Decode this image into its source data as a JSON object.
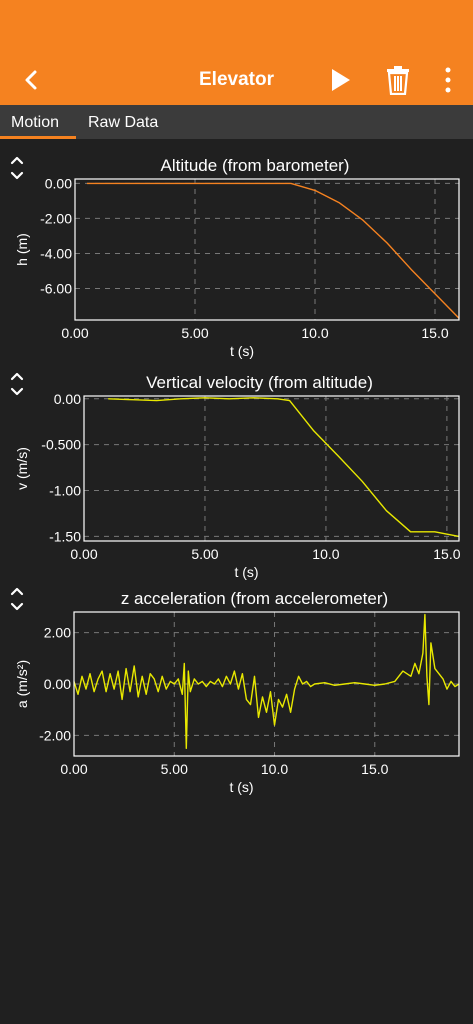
{
  "header": {
    "title": "Elevator",
    "icons": [
      "back-chevron-icon",
      "play-icon",
      "trash-icon",
      "more-vertical-icon"
    ],
    "color": "#f58220"
  },
  "tabs": [
    {
      "label": "Motion",
      "active": true
    },
    {
      "label": "Raw Data",
      "active": false
    }
  ],
  "chart_data": [
    {
      "type": "line",
      "title": "Altitude (from barometer)",
      "xlabel": "t (s)",
      "ylabel": "h (m)",
      "xlim": [
        0,
        16
      ],
      "ylim": [
        -7.8,
        0.25
      ],
      "xticks": [
        0,
        5,
        10,
        15
      ],
      "xtick_labels": [
        "0.00",
        "5.00",
        "10.0",
        "15.0"
      ],
      "yticks": [
        0,
        -2,
        -4,
        -6
      ],
      "ytick_labels": [
        "0.00",
        "-2.00",
        "-4.00",
        "-6.00"
      ],
      "grid": true,
      "color": "#f58220",
      "series": [
        {
          "x": [
            0.5,
            2,
            4,
            6,
            8,
            9,
            10,
            11,
            12,
            13,
            14,
            15,
            16
          ],
          "y": [
            0,
            0,
            0,
            0,
            0,
            0,
            -0.4,
            -1.1,
            -2.1,
            -3.4,
            -4.9,
            -6.3,
            -7.7
          ]
        }
      ]
    },
    {
      "type": "line",
      "title": "Vertical velocity (from altitude)",
      "xlabel": "t (s)",
      "ylabel": "v (m/s)",
      "xlim": [
        0,
        15.5
      ],
      "ylim": [
        -1.55,
        0.03
      ],
      "xticks": [
        0,
        5,
        10,
        15
      ],
      "xtick_labels": [
        "0.00",
        "5.00",
        "10.0",
        "15.0"
      ],
      "yticks": [
        0,
        -0.5,
        -1,
        -1.5
      ],
      "ytick_labels": [
        "0.00",
        "-0.500",
        "-1.00",
        "-1.50"
      ],
      "grid": true,
      "color": "#e8e800",
      "series": [
        {
          "x": [
            1,
            2,
            3,
            4,
            5,
            6,
            7,
            8,
            8.5,
            9.5,
            10.5,
            11.5,
            12.5,
            13.5,
            14.5,
            15.5
          ],
          "y": [
            0,
            -0.01,
            -0.02,
            0,
            0.01,
            0,
            0.01,
            0,
            -0.02,
            -0.35,
            -0.62,
            -0.9,
            -1.22,
            -1.45,
            -1.45,
            -1.5
          ]
        }
      ]
    },
    {
      "type": "line",
      "title": "z acceleration (from accelerometer)",
      "xlabel": "t (s)",
      "ylabel": "a (m/s²)",
      "xlim": [
        0,
        19.2
      ],
      "ylim": [
        -2.8,
        2.8
      ],
      "xticks": [
        0,
        5,
        10,
        15
      ],
      "xtick_labels": [
        "0.00",
        "5.00",
        "10.0",
        "15.0"
      ],
      "yticks": [
        2,
        0,
        -2
      ],
      "ytick_labels": [
        "2.00",
        "0.00",
        "-2.00"
      ],
      "grid": true,
      "color": "#e8e800",
      "series": [
        {
          "x": [
            0,
            0.2,
            0.4,
            0.6,
            0.8,
            1,
            1.2,
            1.4,
            1.6,
            1.8,
            2,
            2.2,
            2.4,
            2.6,
            2.8,
            3,
            3.2,
            3.4,
            3.6,
            3.8,
            4,
            4.2,
            4.4,
            4.6,
            4.8,
            5,
            5.2,
            5.4,
            5.5,
            5.6,
            5.7,
            5.8,
            6,
            6.2,
            6.4,
            6.6,
            6.8,
            7,
            7.2,
            7.4,
            7.6,
            7.8,
            8,
            8.2,
            8.4,
            8.6,
            8.8,
            9,
            9.2,
            9.4,
            9.6,
            9.8,
            10,
            10.2,
            10.4,
            10.6,
            10.8,
            11,
            11.2,
            11.4,
            11.6,
            11.8,
            12,
            12.5,
            13,
            13.5,
            14,
            14.5,
            15,
            15.5,
            16,
            16.4,
            16.8,
            17,
            17.2,
            17.4,
            17.5,
            17.6,
            17.7,
            17.8,
            18,
            18.2,
            18.4,
            18.6,
            18.8,
            19,
            19.2
          ],
          "y": [
            0.1,
            -0.4,
            0.3,
            -0.2,
            0.4,
            -0.3,
            0.2,
            0.5,
            -0.3,
            0.4,
            -0.2,
            0.5,
            -0.6,
            0.6,
            -0.3,
            0.7,
            -0.5,
            0.3,
            -0.4,
            0.4,
            0.2,
            -0.3,
            0.3,
            -0.2,
            0.1,
            0,
            0.2,
            -0.4,
            0.8,
            -2.5,
            0.5,
            -0.3,
            0.2,
            0,
            0.1,
            -0.1,
            0.1,
            0,
            0.2,
            -0.1,
            0.3,
            0,
            0.5,
            -0.2,
            0.4,
            -0.6,
            -0.8,
            0.3,
            -1.3,
            -0.5,
            -1.1,
            -0.3,
            -1.6,
            -0.6,
            -0.9,
            -0.4,
            -1.1,
            -0.2,
            0.3,
            0,
            0.1,
            -0.1,
            0,
            0.05,
            -0.05,
            0,
            0.05,
            0,
            -0.05,
            0,
            0.1,
            0.5,
            0.3,
            0.8,
            0.4,
            1.2,
            2.7,
            0.3,
            -0.8,
            1.6,
            0.6,
            0.4,
            0.2,
            -0.2,
            0.1,
            -0.1,
            0
          ]
        }
      ]
    }
  ]
}
